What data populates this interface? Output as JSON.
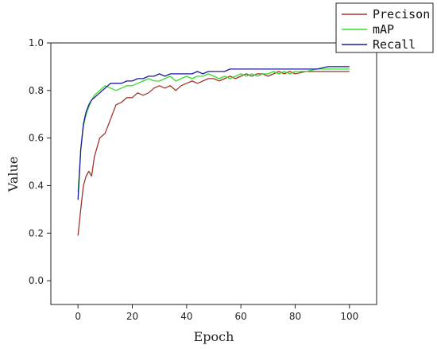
{
  "chart_data": {
    "type": "line",
    "xlabel": "Epoch",
    "ylabel": "Value",
    "xlim": [
      -10,
      110
    ],
    "ylim": [
      -0.1,
      1.0
    ],
    "xticks": [
      0,
      20,
      40,
      60,
      80,
      100
    ],
    "yticks": [
      0.0,
      0.2,
      0.4,
      0.6,
      0.8,
      1.0
    ],
    "xtick_labels": [
      "0",
      "20",
      "40",
      "60",
      "80",
      "100"
    ],
    "ytick_labels": [
      "0.0",
      "0.2",
      "0.4",
      "0.6",
      "0.8",
      "1.0"
    ],
    "grid": false,
    "legend_position": "top-right",
    "series": [
      {
        "name": "Precison",
        "color": "#a0342a",
        "x": [
          0,
          1,
          2,
          3,
          4,
          5,
          6,
          7,
          8,
          10,
          12,
          14,
          16,
          18,
          20,
          22,
          24,
          26,
          28,
          30,
          32,
          34,
          36,
          38,
          40,
          42,
          44,
          46,
          48,
          50,
          52,
          54,
          56,
          58,
          60,
          62,
          64,
          66,
          68,
          70,
          72,
          74,
          76,
          78,
          80,
          84,
          88,
          92,
          96,
          100
        ],
        "y": [
          0.19,
          0.3,
          0.4,
          0.44,
          0.46,
          0.44,
          0.52,
          0.56,
          0.6,
          0.62,
          0.68,
          0.74,
          0.75,
          0.77,
          0.77,
          0.79,
          0.78,
          0.79,
          0.81,
          0.82,
          0.81,
          0.82,
          0.8,
          0.82,
          0.83,
          0.84,
          0.83,
          0.84,
          0.85,
          0.85,
          0.84,
          0.85,
          0.86,
          0.85,
          0.86,
          0.87,
          0.86,
          0.87,
          0.87,
          0.86,
          0.87,
          0.88,
          0.87,
          0.88,
          0.87,
          0.88,
          0.88,
          0.88,
          0.88,
          0.88
        ]
      },
      {
        "name": "mAP",
        "color": "#33dd2e",
        "x": [
          0,
          1,
          2,
          3,
          4,
          5,
          6,
          8,
          10,
          12,
          14,
          16,
          18,
          20,
          22,
          24,
          26,
          28,
          30,
          32,
          34,
          36,
          38,
          40,
          42,
          44,
          46,
          48,
          50,
          52,
          54,
          56,
          58,
          60,
          62,
          64,
          66,
          68,
          70,
          72,
          74,
          76,
          78,
          80,
          84,
          88,
          92,
          96,
          100
        ],
        "y": [
          0.37,
          0.55,
          0.65,
          0.7,
          0.73,
          0.76,
          0.78,
          0.8,
          0.82,
          0.81,
          0.8,
          0.81,
          0.82,
          0.82,
          0.83,
          0.84,
          0.85,
          0.84,
          0.84,
          0.85,
          0.86,
          0.84,
          0.85,
          0.86,
          0.85,
          0.86,
          0.86,
          0.87,
          0.86,
          0.85,
          0.86,
          0.85,
          0.86,
          0.87,
          0.86,
          0.87,
          0.86,
          0.87,
          0.87,
          0.88,
          0.87,
          0.88,
          0.87,
          0.88,
          0.88,
          0.89,
          0.89,
          0.89,
          0.89
        ]
      },
      {
        "name": "Recall",
        "color": "#1a1a9c",
        "x": [
          0,
          1,
          2,
          3,
          4,
          5,
          6,
          8,
          10,
          12,
          14,
          16,
          18,
          20,
          22,
          24,
          26,
          28,
          30,
          32,
          34,
          36,
          38,
          40,
          42,
          44,
          46,
          48,
          50,
          52,
          54,
          56,
          58,
          60,
          62,
          64,
          66,
          68,
          70,
          72,
          74,
          76,
          78,
          80,
          84,
          88,
          92,
          96,
          100
        ],
        "y": [
          0.34,
          0.55,
          0.66,
          0.71,
          0.74,
          0.76,
          0.77,
          0.79,
          0.81,
          0.83,
          0.83,
          0.83,
          0.84,
          0.84,
          0.85,
          0.85,
          0.86,
          0.86,
          0.87,
          0.86,
          0.87,
          0.87,
          0.87,
          0.87,
          0.87,
          0.88,
          0.87,
          0.88,
          0.88,
          0.88,
          0.88,
          0.89,
          0.89,
          0.89,
          0.89,
          0.89,
          0.89,
          0.89,
          0.89,
          0.89,
          0.89,
          0.89,
          0.89,
          0.89,
          0.89,
          0.89,
          0.9,
          0.9,
          0.9
        ]
      }
    ]
  }
}
